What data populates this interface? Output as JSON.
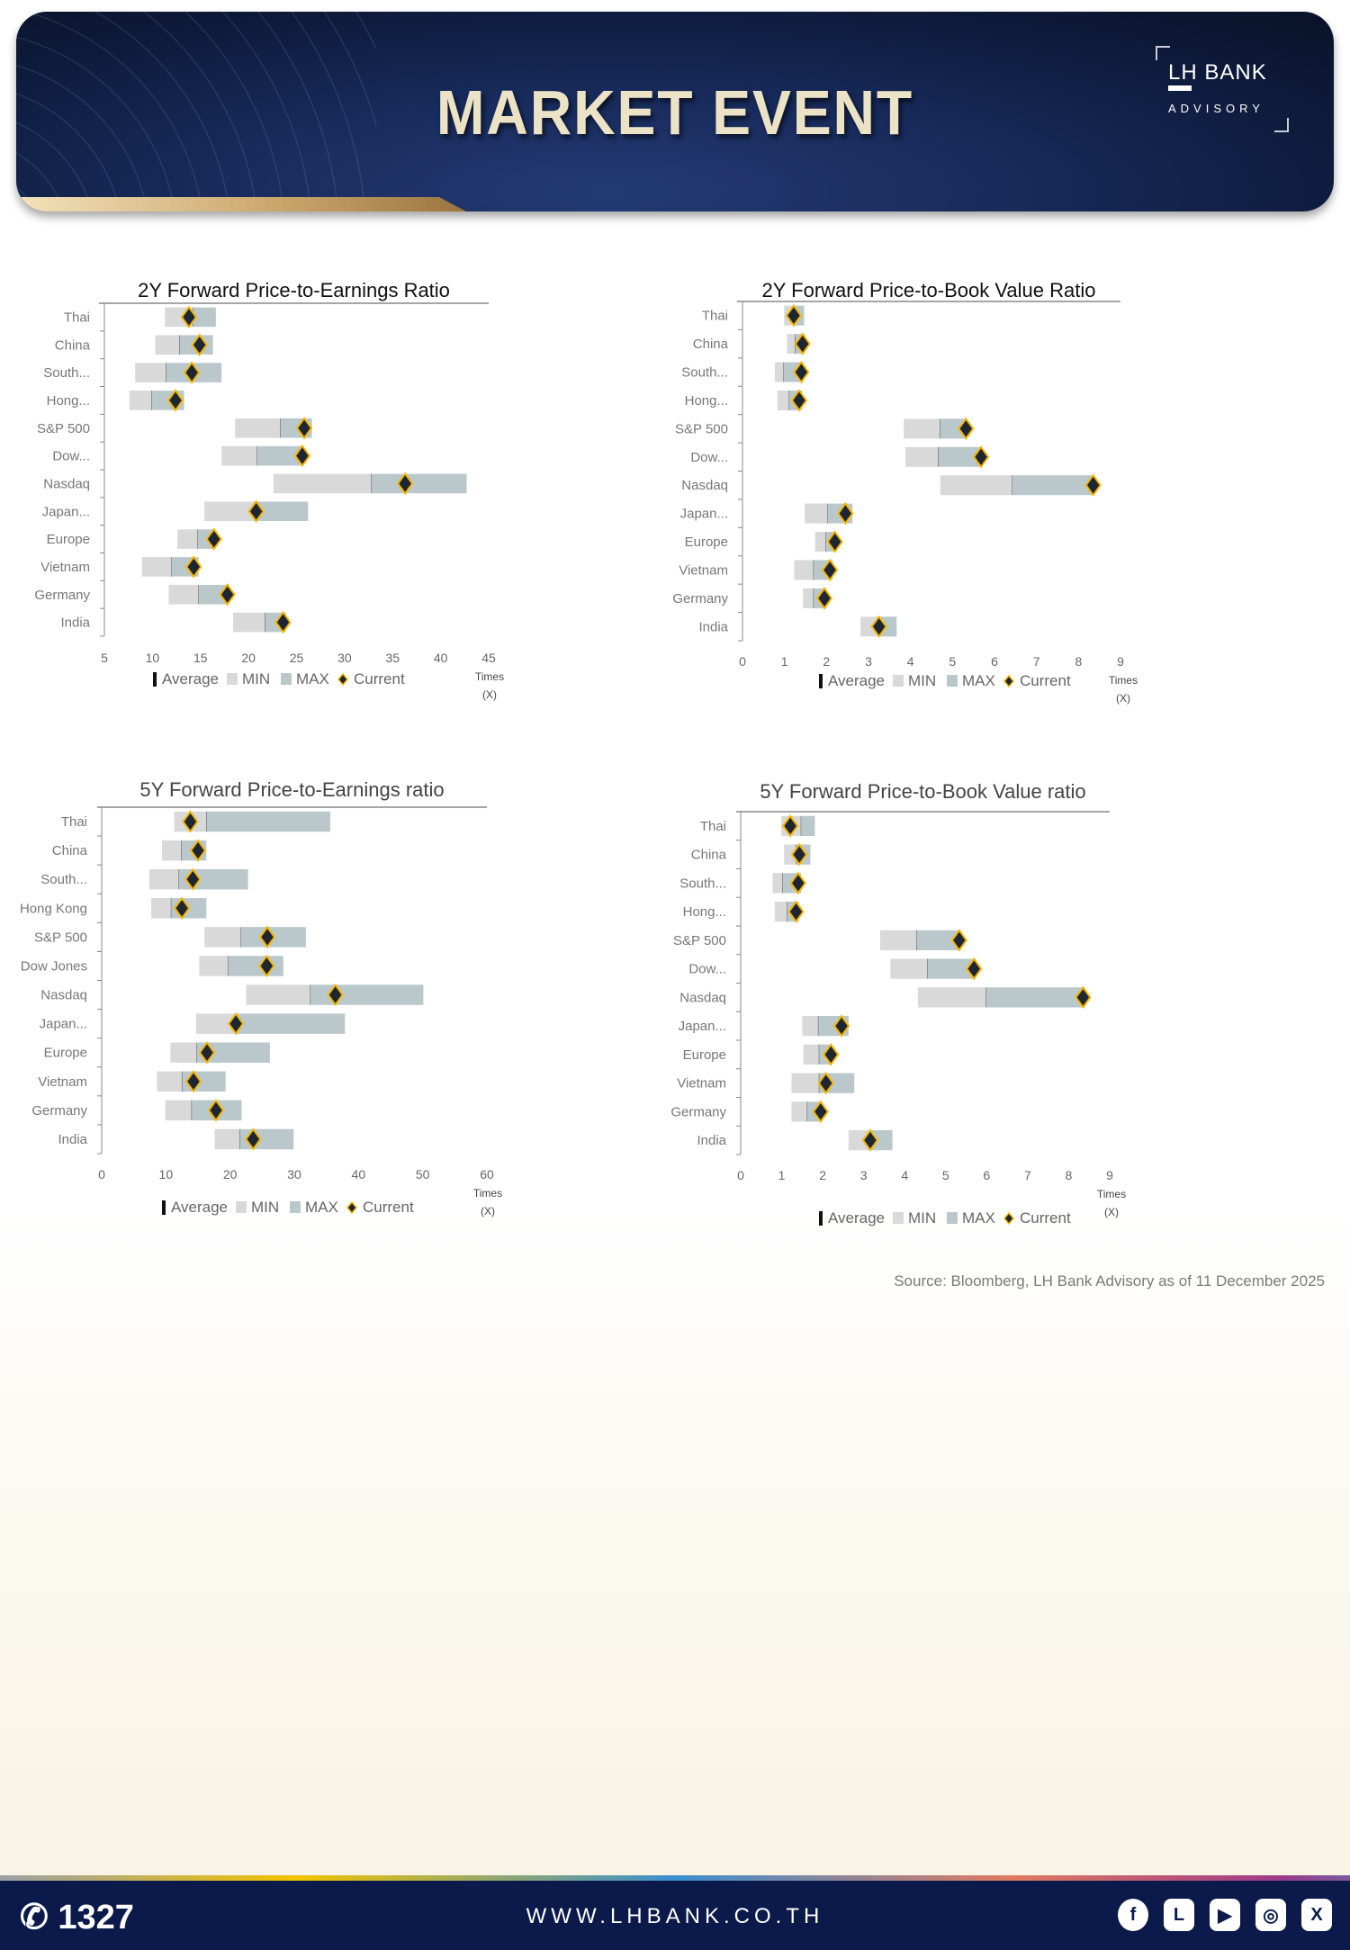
{
  "header": {
    "title": "MARKET EVENT",
    "logo_line1": "LH BANK",
    "logo_line2": "ADVISORY"
  },
  "legend": {
    "average": "Average",
    "min": "MIN",
    "max": "MAX",
    "current": "Current"
  },
  "axis_unit": {
    "line1": "Times",
    "line2": "(X)"
  },
  "colors": {
    "min": "#d9d9d9",
    "max": "#bac8cc",
    "current_fill": "#1f2633",
    "current_stroke": "#f5b800"
  },
  "chart_data": [
    {
      "type": "bar",
      "subtype": "floating-range",
      "title": "2Y Forward Price-to-Earnings Ratio",
      "xlabel": "Times (X)",
      "xlim": [
        5,
        45
      ],
      "xticks": [
        "5",
        "10",
        "15",
        "20",
        "25",
        "30",
        "35",
        "40",
        "45"
      ],
      "categories": [
        "Thai",
        "China",
        "South...",
        "Hong...",
        "S&P 500",
        "Dow...",
        "Nasdaq",
        "Japan...",
        "Europe",
        "Vietnam",
        "Germany",
        "India"
      ],
      "min": [
        11.3,
        10.3,
        8.2,
        7.6,
        18.6,
        17.2,
        22.6,
        15.4,
        12.6,
        8.9,
        11.7,
        18.4
      ],
      "average": [
        14.2,
        12.8,
        11.4,
        9.9,
        23.3,
        20.9,
        32.8,
        20.8,
        14.7,
        12.0,
        14.8,
        21.7
      ],
      "max": [
        16.6,
        16.3,
        17.2,
        13.3,
        26.6,
        25.7,
        42.7,
        26.2,
        16.5,
        14.8,
        17.9,
        23.9
      ],
      "current": [
        13.8,
        14.9,
        14.1,
        12.4,
        25.8,
        25.6,
        36.3,
        20.8,
        16.4,
        14.3,
        17.8,
        23.6
      ]
    },
    {
      "type": "bar",
      "subtype": "floating-range",
      "title": "2Y Forward Price-to-Book Value Ratio",
      "xlabel": "Times (X)",
      "xlim": [
        0,
        9
      ],
      "xticks": [
        "0",
        "1",
        "2",
        "3",
        "4",
        "5",
        "6",
        "7",
        "8",
        "9"
      ],
      "categories": [
        "Thai",
        "China",
        "South...",
        "Hong...",
        "S&P 500",
        "Dow...",
        "Nasdaq",
        "Japan...",
        "Europe",
        "Vietnam",
        "Germany",
        "India"
      ],
      "min": [
        0.99,
        1.06,
        0.77,
        0.83,
        3.84,
        3.88,
        4.71,
        1.48,
        1.73,
        1.23,
        1.44,
        2.81
      ],
      "average": [
        1.2,
        1.25,
        0.98,
        1.11,
        4.7,
        4.66,
        6.42,
        2.03,
        1.98,
        1.69,
        1.69,
        3.25
      ],
      "max": [
        1.47,
        1.48,
        1.46,
        1.42,
        5.34,
        5.68,
        8.37,
        2.62,
        2.22,
        2.15,
        2.0,
        3.67
      ],
      "current": [
        1.22,
        1.43,
        1.4,
        1.35,
        5.32,
        5.68,
        8.35,
        2.45,
        2.2,
        2.08,
        1.95,
        3.25
      ]
    },
    {
      "type": "bar",
      "subtype": "floating-range",
      "title": "5Y Forward Price-to-Earnings ratio",
      "xlabel": "Times (X)",
      "xlim": [
        0,
        60
      ],
      "xticks": [
        "0",
        "10",
        "20",
        "30",
        "40",
        "50",
        "60"
      ],
      "categories": [
        "Thai",
        "China",
        "South...",
        "Hong Kong",
        "S&P 500",
        "Dow Jones",
        "Nasdaq",
        "Japan...",
        "Europe",
        "Vietnam",
        "Germany",
        "India"
      ],
      "min": [
        11.3,
        9.4,
        7.4,
        7.7,
        16.0,
        15.2,
        22.5,
        14.7,
        10.7,
        8.6,
        9.9,
        17.6
      ],
      "average": [
        16.3,
        12.4,
        12.0,
        10.8,
        21.7,
        19.7,
        32.5,
        20.9,
        14.8,
        12.5,
        14.0,
        21.5
      ],
      "max": [
        35.6,
        16.3,
        22.8,
        16.3,
        31.8,
        28.3,
        50.1,
        37.9,
        26.2,
        19.3,
        21.8,
        29.9
      ],
      "current": [
        13.8,
        15.0,
        14.2,
        12.5,
        25.8,
        25.7,
        36.4,
        20.9,
        16.4,
        14.3,
        17.8,
        23.6
      ]
    },
    {
      "type": "bar",
      "subtype": "floating-range",
      "title": "5Y Forward Price-to-Book Value ratio",
      "xlabel": "Times (X)",
      "xlim": [
        0,
        9
      ],
      "xticks": [
        "0",
        "1",
        "2",
        "3",
        "4",
        "5",
        "6",
        "7",
        "8",
        "9"
      ],
      "categories": [
        "Thai",
        "China",
        "South...",
        "Hong...",
        "S&P 500",
        "Dow...",
        "Nasdaq",
        "Japan...",
        "Europe",
        "Vietnam",
        "Germany",
        "India"
      ],
      "min": [
        0.99,
        1.06,
        0.78,
        0.83,
        3.4,
        3.65,
        4.32,
        1.5,
        1.53,
        1.24,
        1.24,
        2.63
      ],
      "average": [
        1.47,
        1.35,
        1.02,
        1.13,
        4.29,
        4.55,
        5.98,
        1.89,
        1.91,
        1.91,
        1.62,
        3.16
      ],
      "max": [
        1.81,
        1.7,
        1.47,
        1.42,
        5.34,
        5.7,
        8.4,
        2.63,
        2.22,
        2.77,
        2.0,
        3.7
      ],
      "current": [
        1.21,
        1.43,
        1.4,
        1.35,
        5.33,
        5.69,
        8.35,
        2.46,
        2.2,
        2.08,
        1.95,
        3.16
      ]
    }
  ],
  "source": "Source: Bloomberg,  LH Bank Advisory  as of 11 December 2025",
  "footer": {
    "phone": "1327",
    "website": "WWW.LHBANK.CO.TH",
    "social": [
      {
        "name": "facebook",
        "glyph": "f"
      },
      {
        "name": "line",
        "glyph": "L"
      },
      {
        "name": "youtube",
        "glyph": "▶"
      },
      {
        "name": "instagram",
        "glyph": "◎"
      },
      {
        "name": "x",
        "glyph": "X"
      }
    ]
  }
}
